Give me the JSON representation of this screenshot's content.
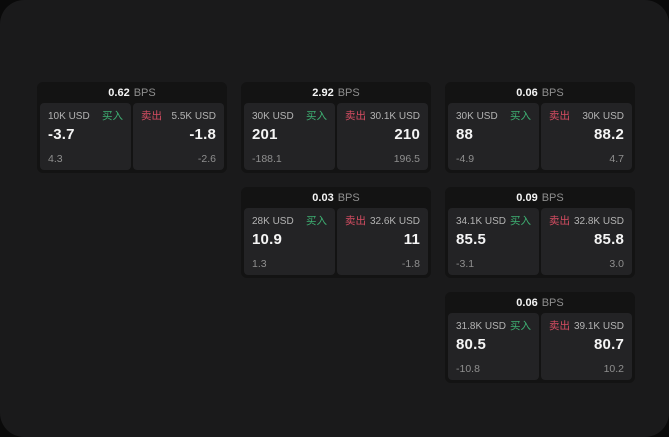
{
  "labels": {
    "bps": "BPS",
    "buy": "买入",
    "sell": "卖出"
  },
  "theme": {
    "page_bg": "#0a0a0a",
    "container_bg": "#1a1a1b",
    "card_bg": "#131313",
    "panel_bg": "#232325",
    "buy_color": "#3eb173",
    "sell_color": "#d64d62",
    "text_primary": "#f5f5f5",
    "text_label": "#b3b3b3",
    "text_muted": "#8f8f8f"
  },
  "cards": [
    {
      "col": 1,
      "row": 1,
      "bps": "0.62",
      "buy": {
        "amount": "10K USD",
        "value": "-3.7",
        "sub": "4.3"
      },
      "sell": {
        "amount": "5.5K USD",
        "value": "-1.8",
        "sub": "-2.6"
      }
    },
    {
      "col": 2,
      "row": 1,
      "bps": "2.92",
      "buy": {
        "amount": "30K USD",
        "value": "201",
        "sub": "-188.1"
      },
      "sell": {
        "amount": "30.1K USD",
        "value": "210",
        "sub": "196.5"
      }
    },
    {
      "col": 3,
      "row": 1,
      "bps": "0.06",
      "buy": {
        "amount": "30K USD",
        "value": "88",
        "sub": "-4.9"
      },
      "sell": {
        "amount": "30K USD",
        "value": "88.2",
        "sub": "4.7"
      }
    },
    {
      "col": 2,
      "row": 2,
      "bps": "0.03",
      "buy": {
        "amount": "28K USD",
        "value": "10.9",
        "sub": "1.3"
      },
      "sell": {
        "amount": "32.6K USD",
        "value": "11",
        "sub": "-1.8"
      }
    },
    {
      "col": 3,
      "row": 2,
      "bps": "0.09",
      "buy": {
        "amount": "34.1K USD",
        "value": "85.5",
        "sub": "-3.1"
      },
      "sell": {
        "amount": "32.8K USD",
        "value": "85.8",
        "sub": "3.0"
      }
    },
    {
      "col": 3,
      "row": 3,
      "bps": "0.06",
      "buy": {
        "amount": "31.8K USD",
        "value": "80.5",
        "sub": "-10.8"
      },
      "sell": {
        "amount": "39.1K USD",
        "value": "80.7",
        "sub": "10.2"
      }
    }
  ]
}
